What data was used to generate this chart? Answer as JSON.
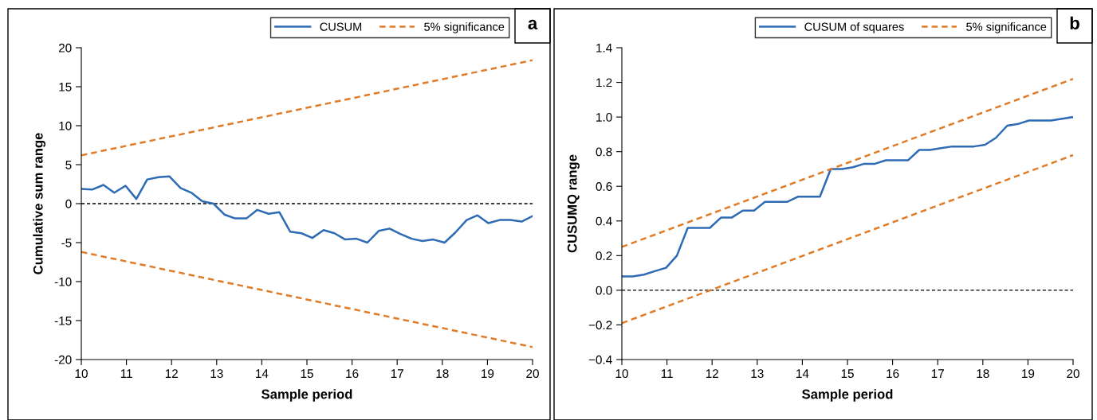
{
  "chart_data": [
    {
      "type": "line",
      "xlabel": "Sample period",
      "ylabel": "Cumulative sum range",
      "annotations": [
        "a"
      ],
      "legend": "top right",
      "grid": false,
      "marker": "none",
      "xlim": [
        10,
        20
      ],
      "xticks": [
        10,
        11,
        12,
        13,
        14,
        15,
        16,
        17,
        18,
        19,
        20
      ],
      "ylim": [
        -20,
        20
      ],
      "yticks": [
        -20,
        -15,
        -10,
        -5,
        0,
        5,
        10,
        15,
        20
      ],
      "ref_lines": [
        {
          "axis": "y",
          "value": 0,
          "color": "#000000",
          "line_style": "dashed"
        }
      ],
      "series": [
        {
          "name": "CUSUM",
          "color": "#2e6bb5",
          "line_style": "solid",
          "x": [
            10,
            10.24,
            10.49,
            10.73,
            10.98,
            11.22,
            11.46,
            11.71,
            11.95,
            12.2,
            12.44,
            12.68,
            12.93,
            13.17,
            13.41,
            13.66,
            13.9,
            14.15,
            14.39,
            14.63,
            14.88,
            15.12,
            15.37,
            15.61,
            15.85,
            16.1,
            16.34,
            16.59,
            16.83,
            17.07,
            17.32,
            17.56,
            17.8,
            18.05,
            18.29,
            18.54,
            18.78,
            19.02,
            19.27,
            19.51,
            19.76,
            20
          ],
          "values": [
            1.9,
            1.8,
            2.4,
            1.4,
            2.3,
            0.6,
            3.1,
            3.4,
            3.5,
            2.0,
            1.4,
            0.3,
            0.0,
            -1.4,
            -1.9,
            -1.9,
            -0.8,
            -1.3,
            -1.1,
            -3.6,
            -3.8,
            -4.4,
            -3.4,
            -3.8,
            -4.6,
            -4.5,
            -5.0,
            -3.5,
            -3.2,
            -3.9,
            -4.5,
            -4.8,
            -4.6,
            -5.0,
            -3.7,
            -2.1,
            -1.5,
            -2.5,
            -2.1,
            -2.1,
            -2.3,
            -1.6
          ]
        },
        {
          "name": "5% significance",
          "color": "#e07b28",
          "line_style": "dashed",
          "x": [
            10,
            20
          ],
          "values": [
            6.2,
            18.4
          ]
        },
        {
          "color": "#e07b28",
          "line_style": "dashed",
          "x": [
            10,
            20
          ],
          "values": [
            -6.2,
            -18.4
          ]
        }
      ]
    },
    {
      "type": "line",
      "xlabel": "Sample period",
      "ylabel": "CUSUMQ range",
      "annotations": [
        "b"
      ],
      "legend": "top right",
      "grid": false,
      "marker": "none",
      "xlim": [
        10,
        20
      ],
      "xticks": [
        10,
        11,
        12,
        13,
        14,
        15,
        16,
        17,
        18,
        19,
        20
      ],
      "ylim": [
        -0.4,
        1.4
      ],
      "yticks": [
        {
          "value": -0.4,
          "label": "−0.4"
        },
        {
          "value": -0.2,
          "label": "−0.2"
        },
        {
          "value": 0,
          "label": "0.0"
        },
        {
          "value": 0.2,
          "label": "0.2"
        },
        {
          "value": 0.4,
          "label": "0.4"
        },
        {
          "value": 0.6,
          "label": "0.6"
        },
        {
          "value": 0.8,
          "label": "0.8"
        },
        {
          "value": 1.0,
          "label": "1.0"
        },
        {
          "value": 1.2,
          "label": "1.2"
        },
        {
          "value": 1.4,
          "label": "1.4"
        }
      ],
      "ref_lines": [
        {
          "axis": "y",
          "value": 0,
          "color": "#000000",
          "line_style": "dashed"
        }
      ],
      "series": [
        {
          "name": "CUSUM of squares",
          "color": "#2e6bb5",
          "line_style": "solid",
          "x": [
            10,
            10.24,
            10.49,
            10.73,
            10.98,
            11.22,
            11.46,
            11.71,
            11.95,
            12.2,
            12.44,
            12.68,
            12.93,
            13.17,
            13.41,
            13.66,
            13.9,
            14.15,
            14.39,
            14.63,
            14.88,
            15.12,
            15.37,
            15.61,
            15.85,
            16.1,
            16.34,
            16.59,
            16.83,
            17.07,
            17.32,
            17.56,
            17.8,
            18.05,
            18.29,
            18.54,
            18.78,
            19.02,
            19.27,
            19.51,
            19.76,
            20
          ],
          "values": [
            0.08,
            0.08,
            0.09,
            0.11,
            0.13,
            0.2,
            0.36,
            0.36,
            0.36,
            0.42,
            0.42,
            0.46,
            0.46,
            0.51,
            0.51,
            0.51,
            0.54,
            0.54,
            0.54,
            0.7,
            0.7,
            0.71,
            0.73,
            0.73,
            0.75,
            0.75,
            0.75,
            0.81,
            0.81,
            0.82,
            0.83,
            0.83,
            0.83,
            0.84,
            0.88,
            0.95,
            0.96,
            0.98,
            0.98,
            0.98,
            0.99,
            1.0
          ]
        },
        {
          "name": "5% significance",
          "color": "#e07b28",
          "line_style": "dashed",
          "x": [
            10,
            20
          ],
          "values": [
            0.25,
            1.22
          ]
        },
        {
          "color": "#e07b28",
          "line_style": "dashed",
          "x": [
            10,
            20
          ],
          "values": [
            -0.19,
            0.78
          ]
        }
      ]
    }
  ]
}
